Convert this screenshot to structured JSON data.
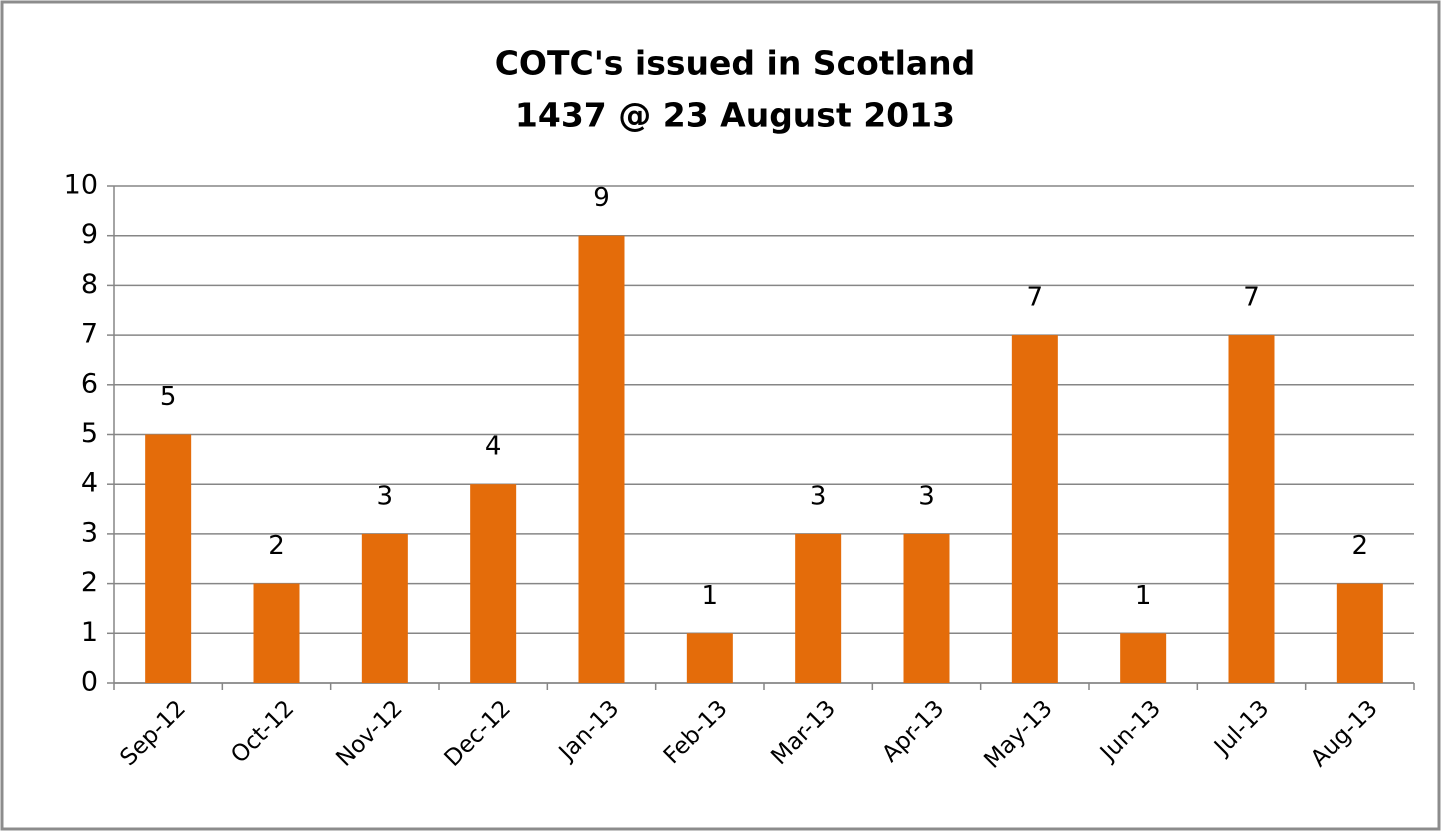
{
  "chart_data": {
    "type": "bar",
    "title": "COTC's issued in Scotland",
    "subtitle": "1437 @ 23 August 2013",
    "categories": [
      "Sep-12",
      "Oct-12",
      "Nov-12",
      "Dec-12",
      "Jan-13",
      "Feb-13",
      "Mar-13",
      "Apr-13",
      "May-13",
      "Jun-13",
      "Jul-13",
      "Aug-13"
    ],
    "values": [
      5,
      2,
      3,
      4,
      9,
      1,
      3,
      3,
      7,
      1,
      7,
      2
    ],
    "color": "#e46c0a",
    "ylim": [
      0,
      10
    ],
    "yticks": [
      0,
      1,
      2,
      3,
      4,
      5,
      6,
      7,
      8,
      9,
      10
    ],
    "grid": true
  }
}
